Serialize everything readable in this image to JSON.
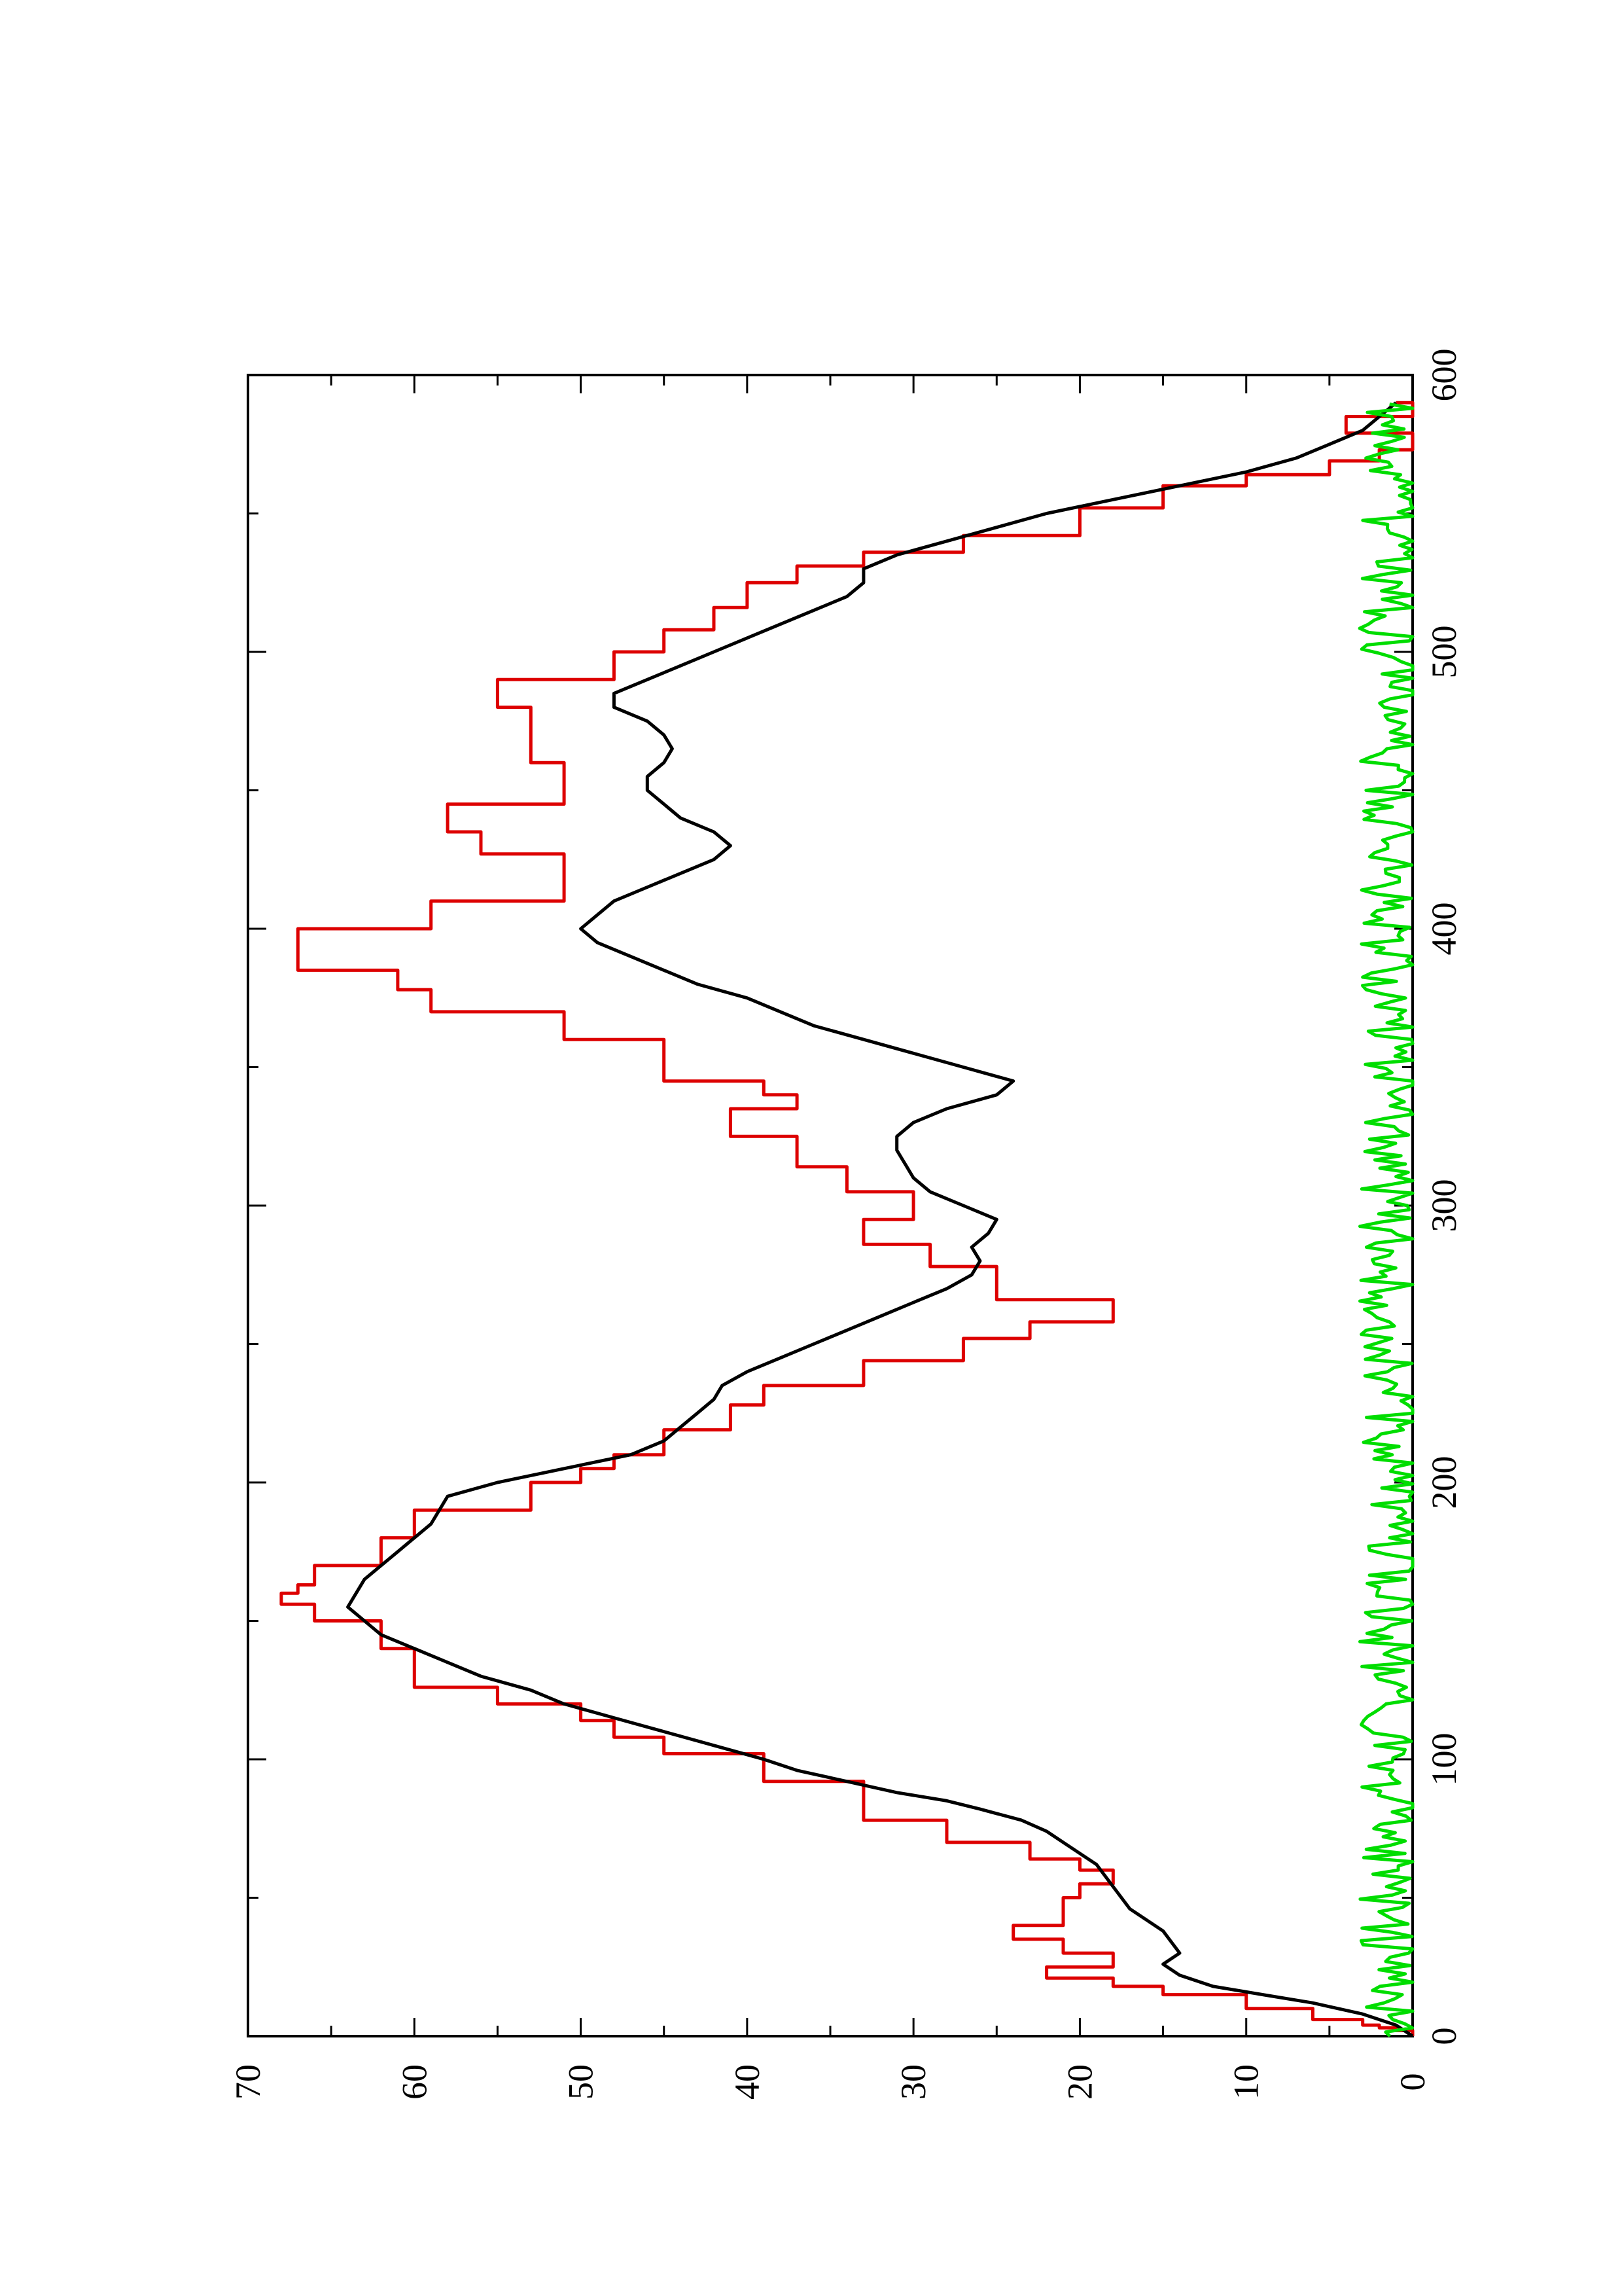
{
  "chart_data": {
    "type": "line",
    "title": "",
    "xlabel": "",
    "ylabel": "",
    "xlim": [
      0,
      600
    ],
    "ylim": [
      0,
      70
    ],
    "x_ticks": [
      0,
      100,
      200,
      300,
      400,
      500,
      600
    ],
    "y_ticks": [
      0,
      10,
      20,
      30,
      40,
      50,
      60,
      70
    ],
    "x_minor_step": 50,
    "y_minor_step": 5,
    "grid": false,
    "legend": "none",
    "orientation": "rotated-90-ccw",
    "series": [
      {
        "color": "#dd0000",
        "style": "step",
        "values": [
          [
            0,
            0
          ],
          [
            2,
            0
          ],
          [
            2,
            1
          ],
          [
            3,
            1
          ],
          [
            3,
            2
          ],
          [
            4,
            2
          ],
          [
            4,
            3
          ],
          [
            6,
            3
          ],
          [
            6,
            6
          ],
          [
            10,
            6
          ],
          [
            10,
            10
          ],
          [
            15,
            10
          ],
          [
            15,
            15
          ],
          [
            18,
            15
          ],
          [
            18,
            18
          ],
          [
            21,
            18
          ],
          [
            21,
            22
          ],
          [
            25,
            22
          ],
          [
            25,
            18
          ],
          [
            30,
            18
          ],
          [
            30,
            21
          ],
          [
            35,
            21
          ],
          [
            35,
            24
          ],
          [
            40,
            24
          ],
          [
            40,
            21
          ],
          [
            50,
            21
          ],
          [
            50,
            20
          ],
          [
            55,
            20
          ],
          [
            55,
            18
          ],
          [
            60,
            18
          ],
          [
            60,
            20
          ],
          [
            64,
            20
          ],
          [
            64,
            23
          ],
          [
            70,
            23
          ],
          [
            70,
            28
          ],
          [
            78,
            28
          ],
          [
            78,
            33
          ],
          [
            92,
            33
          ],
          [
            92,
            39
          ],
          [
            102,
            39
          ],
          [
            102,
            45
          ],
          [
            108,
            45
          ],
          [
            108,
            48
          ],
          [
            114,
            48
          ],
          [
            114,
            50
          ],
          [
            120,
            50
          ],
          [
            120,
            55
          ],
          [
            126,
            55
          ],
          [
            126,
            60
          ],
          [
            140,
            60
          ],
          [
            140,
            62
          ],
          [
            150,
            62
          ],
          [
            150,
            66
          ],
          [
            156,
            66
          ],
          [
            156,
            68
          ],
          [
            160,
            68
          ],
          [
            160,
            67
          ],
          [
            163,
            67
          ],
          [
            163,
            66
          ],
          [
            170,
            66
          ],
          [
            170,
            62
          ],
          [
            180,
            62
          ],
          [
            180,
            60
          ],
          [
            190,
            60
          ],
          [
            190,
            53
          ],
          [
            200,
            53
          ],
          [
            200,
            50
          ],
          [
            205,
            50
          ],
          [
            205,
            48
          ],
          [
            210,
            48
          ],
          [
            210,
            45
          ],
          [
            219,
            45
          ],
          [
            219,
            41
          ],
          [
            228,
            41
          ],
          [
            228,
            39
          ],
          [
            235,
            39
          ],
          [
            235,
            33
          ],
          [
            244,
            33
          ],
          [
            244,
            27
          ],
          [
            252,
            27
          ],
          [
            252,
            23
          ],
          [
            258,
            23
          ],
          [
            258,
            18
          ],
          [
            266,
            18
          ],
          [
            266,
            25
          ],
          [
            278,
            25
          ],
          [
            278,
            29
          ],
          [
            286,
            29
          ],
          [
            286,
            33
          ],
          [
            295,
            33
          ],
          [
            295,
            30
          ],
          [
            305,
            30
          ],
          [
            305,
            34
          ],
          [
            314,
            34
          ],
          [
            314,
            37
          ],
          [
            325,
            37
          ],
          [
            325,
            41
          ],
          [
            335,
            41
          ],
          [
            335,
            37
          ],
          [
            340,
            37
          ],
          [
            340,
            39
          ],
          [
            345,
            39
          ],
          [
            345,
            45
          ],
          [
            360,
            45
          ],
          [
            360,
            51
          ],
          [
            370,
            51
          ],
          [
            370,
            59
          ],
          [
            378,
            59
          ],
          [
            378,
            61
          ],
          [
            385,
            61
          ],
          [
            385,
            67
          ],
          [
            400,
            67
          ],
          [
            400,
            59
          ],
          [
            410,
            59
          ],
          [
            410,
            51
          ],
          [
            427,
            51
          ],
          [
            427,
            56
          ],
          [
            435,
            56
          ],
          [
            435,
            58
          ],
          [
            445,
            58
          ],
          [
            445,
            51
          ],
          [
            460,
            51
          ],
          [
            460,
            53
          ],
          [
            480,
            53
          ],
          [
            480,
            55
          ],
          [
            490,
            55
          ],
          [
            490,
            48
          ],
          [
            500,
            48
          ],
          [
            500,
            45
          ],
          [
            508,
            45
          ],
          [
            508,
            42
          ],
          [
            516,
            42
          ],
          [
            516,
            40
          ],
          [
            525,
            40
          ],
          [
            525,
            37
          ],
          [
            531,
            37
          ],
          [
            531,
            33
          ],
          [
            536,
            33
          ],
          [
            536,
            27
          ],
          [
            542,
            27
          ],
          [
            542,
            20
          ],
          [
            552,
            20
          ],
          [
            552,
            15
          ],
          [
            560,
            15
          ],
          [
            560,
            10
          ],
          [
            564,
            10
          ],
          [
            564,
            5
          ],
          [
            569,
            5
          ],
          [
            569,
            2
          ],
          [
            573,
            2
          ],
          [
            573,
            0
          ],
          [
            579,
            0
          ],
          [
            579,
            4
          ],
          [
            585,
            4
          ],
          [
            585,
            0
          ],
          [
            590,
            0
          ],
          [
            590,
            1
          ]
        ]
      },
      {
        "color": "#000000",
        "style": "line",
        "values": [
          [
            0,
            0
          ],
          [
            4,
            1
          ],
          [
            8,
            3
          ],
          [
            12,
            6
          ],
          [
            15,
            9
          ],
          [
            18,
            12
          ],
          [
            22,
            14
          ],
          [
            26,
            15
          ],
          [
            30,
            14
          ],
          [
            34,
            14.5
          ],
          [
            38,
            15
          ],
          [
            42,
            16
          ],
          [
            46,
            17
          ],
          [
            50,
            17.5
          ],
          [
            54,
            18
          ],
          [
            58,
            18.5
          ],
          [
            62,
            19
          ],
          [
            66,
            20
          ],
          [
            70,
            21
          ],
          [
            74,
            22
          ],
          [
            78,
            23.5
          ],
          [
            82,
            26
          ],
          [
            85,
            28
          ],
          [
            88,
            31
          ],
          [
            92,
            34
          ],
          [
            96,
            37
          ],
          [
            100,
            39
          ],
          [
            105,
            42
          ],
          [
            110,
            45
          ],
          [
            115,
            48
          ],
          [
            120,
            51
          ],
          [
            125,
            53
          ],
          [
            130,
            56
          ],
          [
            135,
            58
          ],
          [
            140,
            60
          ],
          [
            145,
            62
          ],
          [
            150,
            63
          ],
          [
            155,
            64
          ],
          [
            160,
            63.5
          ],
          [
            165,
            63
          ],
          [
            170,
            62
          ],
          [
            175,
            61
          ],
          [
            180,
            60
          ],
          [
            185,
            59
          ],
          [
            190,
            58.5
          ],
          [
            195,
            58
          ],
          [
            200,
            55
          ],
          [
            205,
            51
          ],
          [
            210,
            47
          ],
          [
            215,
            45
          ],
          [
            220,
            44
          ],
          [
            225,
            43
          ],
          [
            230,
            42
          ],
          [
            235,
            41.5
          ],
          [
            240,
            40
          ],
          [
            245,
            38
          ],
          [
            250,
            36
          ],
          [
            255,
            34
          ],
          [
            260,
            32
          ],
          [
            265,
            30
          ],
          [
            270,
            28
          ],
          [
            275,
            26.5
          ],
          [
            280,
            26
          ],
          [
            285,
            26.5
          ],
          [
            290,
            25.5
          ],
          [
            295,
            25
          ],
          [
            300,
            27
          ],
          [
            305,
            29
          ],
          [
            310,
            30
          ],
          [
            315,
            30.5
          ],
          [
            320,
            31
          ],
          [
            325,
            31
          ],
          [
            330,
            30
          ],
          [
            335,
            28
          ],
          [
            340,
            25
          ],
          [
            345,
            24
          ],
          [
            350,
            27
          ],
          [
            355,
            30
          ],
          [
            360,
            33
          ],
          [
            365,
            36
          ],
          [
            370,
            38
          ],
          [
            375,
            40
          ],
          [
            380,
            43
          ],
          [
            385,
            45
          ],
          [
            390,
            47
          ],
          [
            395,
            49
          ],
          [
            400,
            50
          ],
          [
            405,
            49
          ],
          [
            410,
            48
          ],
          [
            415,
            46
          ],
          [
            420,
            44
          ],
          [
            425,
            42
          ],
          [
            430,
            41
          ],
          [
            435,
            42
          ],
          [
            440,
            44
          ],
          [
            445,
            45
          ],
          [
            450,
            46
          ],
          [
            455,
            46
          ],
          [
            460,
            45
          ],
          [
            465,
            44.5
          ],
          [
            470,
            45
          ],
          [
            475,
            46
          ],
          [
            480,
            48
          ],
          [
            485,
            48
          ],
          [
            490,
            46
          ],
          [
            495,
            44
          ],
          [
            500,
            42
          ],
          [
            505,
            40
          ],
          [
            510,
            38
          ],
          [
            515,
            36
          ],
          [
            520,
            34
          ],
          [
            525,
            33
          ],
          [
            530,
            33
          ],
          [
            535,
            31
          ],
          [
            540,
            28
          ],
          [
            545,
            25
          ],
          [
            550,
            22
          ],
          [
            555,
            18
          ],
          [
            560,
            14
          ],
          [
            565,
            10
          ],
          [
            570,
            7
          ],
          [
            575,
            5
          ],
          [
            580,
            3
          ],
          [
            585,
            2
          ],
          [
            590,
            1
          ]
        ]
      },
      {
        "color": "#00dd00",
        "style": "line",
        "noise_amplitude": 1.8,
        "base_level": 1.4,
        "x_range": [
          0,
          590
        ]
      }
    ]
  }
}
